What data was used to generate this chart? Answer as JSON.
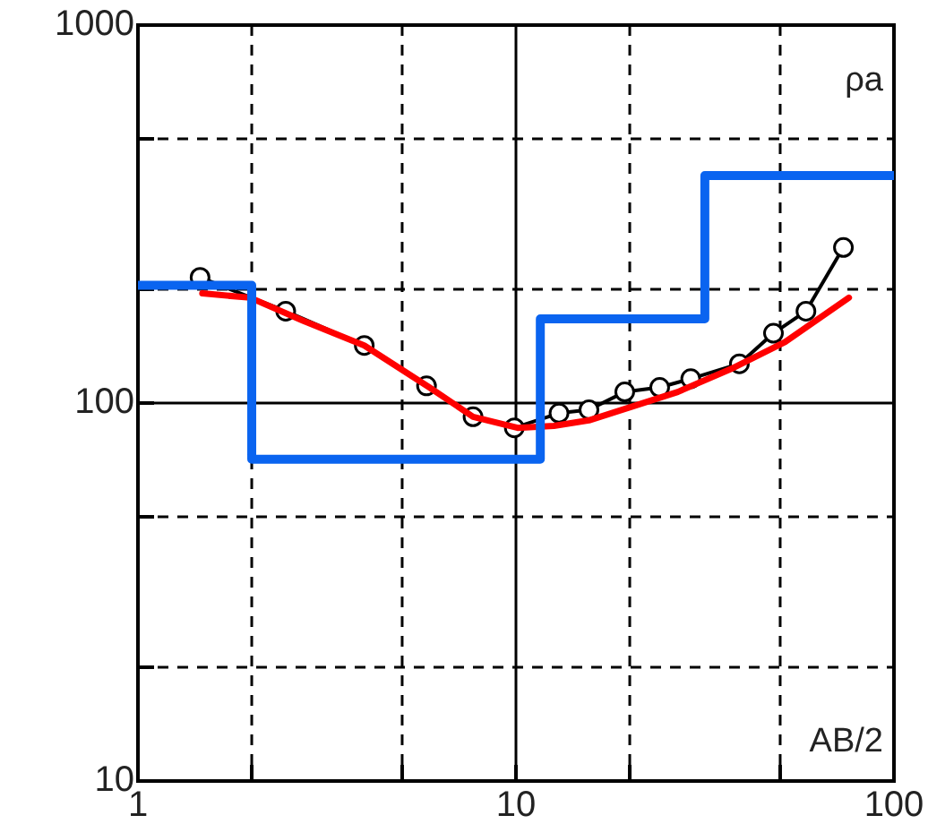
{
  "chart_data": {
    "type": "line",
    "xlabel": "AB/2",
    "ylabel": "ρa",
    "log": "xy",
    "grid": true,
    "legend": false,
    "xlim": [
      1,
      100
    ],
    "ylim": [
      10,
      1000
    ],
    "xticks": [
      1,
      {
        "value": 2,
        "label": null
      },
      {
        "value": 5,
        "label": null
      },
      10,
      {
        "value": 20,
        "label": null
      },
      {
        "value": 50,
        "label": null
      },
      100
    ],
    "yticks": [
      10,
      {
        "value": 20,
        "label": null
      },
      {
        "value": 50,
        "label": null
      },
      100,
      {
        "value": 200,
        "label": null
      },
      {
        "value": 500,
        "label": null
      },
      1000
    ],
    "series": [
      {
        "type": "step",
        "color": "#0a64f0",
        "marker": "none",
        "x": [
          1,
          2,
          11.6,
          31.6,
          100
        ],
        "values": [
          205,
          71,
          167,
          400,
          400
        ]
      },
      {
        "type": "line",
        "color": "#ff0000",
        "marker": "none",
        "x": [
          1.48,
          1.98,
          2.74,
          3.97,
          5.9,
          7.7,
          10.1,
          12.6,
          15.6,
          20.4,
          26.8,
          37,
          51.5,
          76
        ],
        "values": [
          195,
          190,
          165,
          142,
          110,
          92,
          86,
          87,
          90,
          98,
          107,
          123,
          145,
          190
        ]
      },
      {
        "type": "line",
        "color": "#000000",
        "marker": "circle",
        "x": [
          1.46,
          2.46,
          3.97,
          5.8,
          7.7,
          9.9,
          13,
          15.6,
          19.4,
          24,
          29,
          39,
          48,
          58.5,
          73.5
        ],
        "values": [
          215,
          175,
          142,
          111,
          92,
          86,
          94,
          96,
          107,
          110,
          116,
          127,
          153,
          175,
          258
        ]
      }
    ]
  }
}
